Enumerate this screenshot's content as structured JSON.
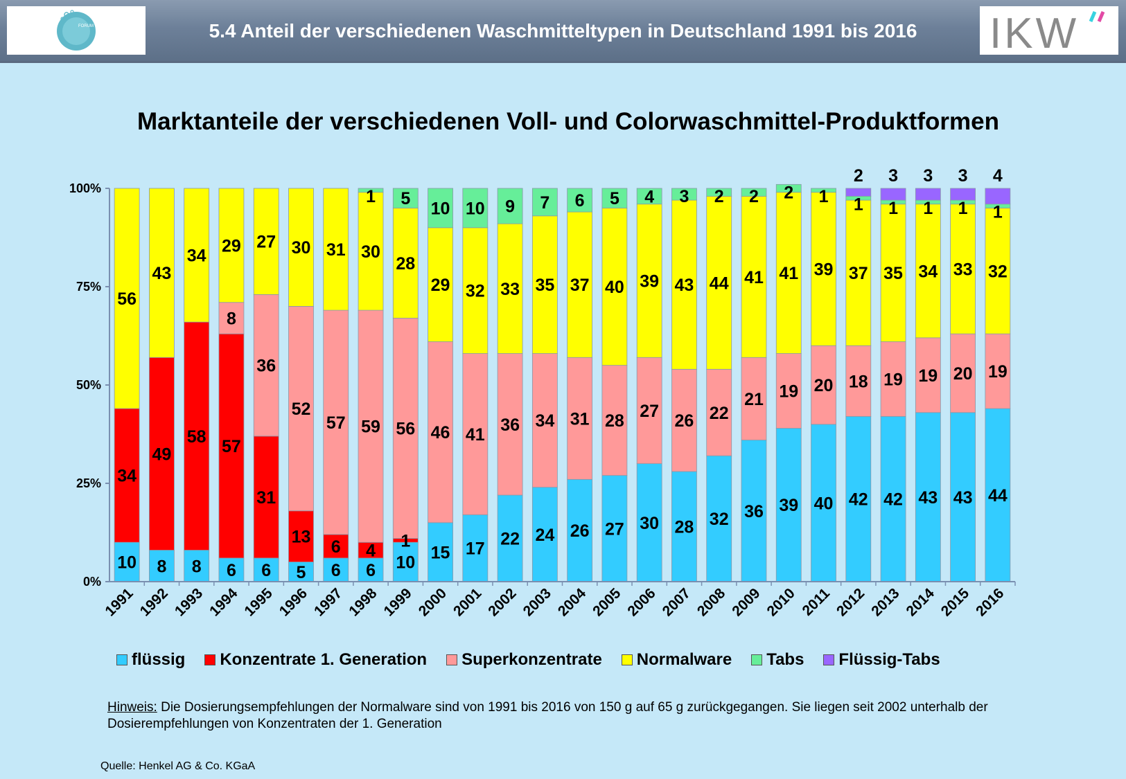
{
  "header": {
    "title": "5.4 Anteil der verschiedenen Waschmitteltypen in Deutschland 1991 bis 2016",
    "logo_left_text": "FORUM WASCHEN",
    "logo_right_text": "IKW"
  },
  "colors": {
    "header_bg": "#6d8099",
    "page_bg": "#c5e8f8",
    "fluessig": "#33ccff",
    "konzentrate": "#ff0000",
    "super": "#ff9999",
    "normal": "#ffff00",
    "tabs": "#66ee99",
    "fluessig_tabs": "#9966ff"
  },
  "chart_data": {
    "type": "bar",
    "stacked": true,
    "percent": true,
    "title": "Marktanteile der verschiedenen Voll- und Colorwaschmittel-Produktformen",
    "categories": [
      "1991",
      "1992",
      "1993",
      "1994",
      "1995",
      "1996",
      "1997",
      "1998",
      "1999",
      "2000",
      "2001",
      "2002",
      "2003",
      "2004",
      "2005",
      "2006",
      "2007",
      "2008",
      "2009",
      "2010",
      "2011",
      "2012",
      "2013",
      "2014",
      "2015",
      "2016"
    ],
    "yticks": [
      "0%",
      "25%",
      "50%",
      "75%",
      "100%"
    ],
    "ylim": [
      0,
      100
    ],
    "series": [
      {
        "name": "flüssig",
        "color": "#33ccff",
        "values": [
          10,
          8,
          8,
          6,
          6,
          5,
          6,
          6,
          10,
          15,
          17,
          22,
          24,
          26,
          27,
          30,
          28,
          32,
          36,
          39,
          40,
          42,
          42,
          43,
          43,
          44
        ]
      },
      {
        "name": "Konzentrate 1. Generation",
        "color": "#ff0000",
        "values": [
          34,
          49,
          58,
          57,
          31,
          13,
          6,
          4,
          1,
          0,
          0,
          0,
          0,
          0,
          0,
          0,
          0,
          0,
          0,
          0,
          0,
          0,
          0,
          0,
          0,
          0
        ]
      },
      {
        "name": "Superkonzentrate",
        "color": "#ff9999",
        "values": [
          0,
          0,
          0,
          8,
          36,
          52,
          57,
          59,
          56,
          46,
          41,
          36,
          34,
          31,
          28,
          27,
          26,
          22,
          21,
          19,
          20,
          18,
          19,
          19,
          20,
          19
        ]
      },
      {
        "name": "Normalware",
        "color": "#ffff00",
        "values": [
          56,
          43,
          34,
          29,
          27,
          30,
          31,
          30,
          28,
          29,
          32,
          33,
          35,
          37,
          40,
          39,
          43,
          44,
          41,
          41,
          39,
          37,
          35,
          34,
          33,
          32
        ]
      },
      {
        "name": "Tabs",
        "color": "#66ee99",
        "values": [
          0,
          0,
          0,
          0,
          0,
          0,
          0,
          1,
          5,
          10,
          10,
          9,
          7,
          6,
          5,
          4,
          3,
          2,
          2,
          2,
          1,
          1,
          1,
          1,
          1,
          1
        ]
      },
      {
        "name": "Flüssig-Tabs",
        "color": "#9966ff",
        "values": [
          0,
          0,
          0,
          0,
          0,
          0,
          0,
          0,
          0,
          0,
          0,
          0,
          0,
          0,
          0,
          0,
          0,
          0,
          0,
          0,
          0,
          2,
          3,
          3,
          3,
          4
        ]
      }
    ],
    "legend": [
      "flüssig",
      "Konzentrate 1. Generation",
      "Superkonzentrate",
      "Normalware",
      "Tabs",
      "Flüssig-Tabs"
    ],
    "legend_position": "bottom"
  },
  "note": {
    "label": "Hinweis:",
    "text": " Die Dosierungsempfehlungen der Normalware sind von 1991 bis 2016 von 150 g auf 65 g zurückgegangen. Sie liegen seit 2002 unterhalb der Dosierempfehlungen von Konzentraten der 1. Generation"
  },
  "source": "Quelle: Henkel AG & Co. KGaA"
}
